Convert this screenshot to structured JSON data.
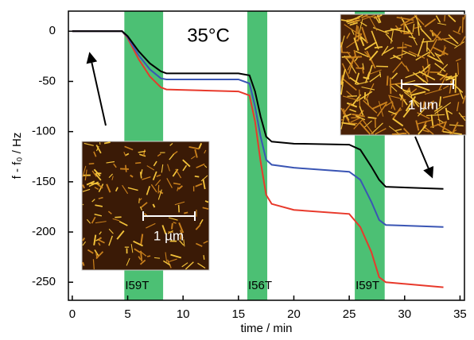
{
  "chart_data": {
    "type": "line",
    "xlabel": "time / min",
    "ylabel": "f - f₀ / Hz",
    "annotation": "35°C",
    "xlim": [
      -0.35,
      35.4
    ],
    "xticks": [
      0,
      5,
      10,
      15,
      20,
      25,
      30,
      35
    ],
    "ylim": [
      -268,
      20
    ],
    "yticks": [
      0,
      -50,
      -100,
      -150,
      -200,
      -250
    ],
    "x": [
      0,
      4.5,
      5,
      6,
      7,
      8,
      8.5,
      15,
      16,
      16.5,
      17,
      17.5,
      18,
      20,
      25,
      26,
      27,
      27.7,
      28.3,
      33.5
    ],
    "bands": [
      {
        "from": 4.7,
        "to": 8.2,
        "label": "I59T",
        "color": "#4cc074"
      },
      {
        "from": 15.8,
        "to": 17.6,
        "label": "I56T",
        "color": "#4cc074"
      },
      {
        "from": 25.5,
        "to": 28.2,
        "label": "I59T",
        "color": "#4cc074"
      }
    ],
    "series": [
      {
        "color": "#e8392b",
        "values": [
          0,
          0,
          -7,
          -28,
          -45,
          -56,
          -58,
          -60,
          -64,
          -90,
          -130,
          -163,
          -172,
          -178,
          -182,
          -195,
          -220,
          -245,
          -250,
          -255
        ]
      },
      {
        "color": "#3a55b4",
        "values": [
          0,
          0,
          -6,
          -24,
          -38,
          -47,
          -48,
          -48,
          -52,
          -75,
          -105,
          -128,
          -133,
          -136,
          -140,
          -148,
          -170,
          -188,
          -193,
          -195
        ]
      },
      {
        "color": "#000000",
        "values": [
          0,
          0,
          -5,
          -20,
          -32,
          -40,
          -42,
          -42,
          -44,
          -60,
          -85,
          -105,
          -110,
          -112,
          -113,
          -118,
          -135,
          -148,
          -155,
          -157
        ]
      }
    ],
    "insets": [
      {
        "scale_label": "1 µm"
      },
      {
        "scale_label": "1 µm"
      }
    ]
  }
}
